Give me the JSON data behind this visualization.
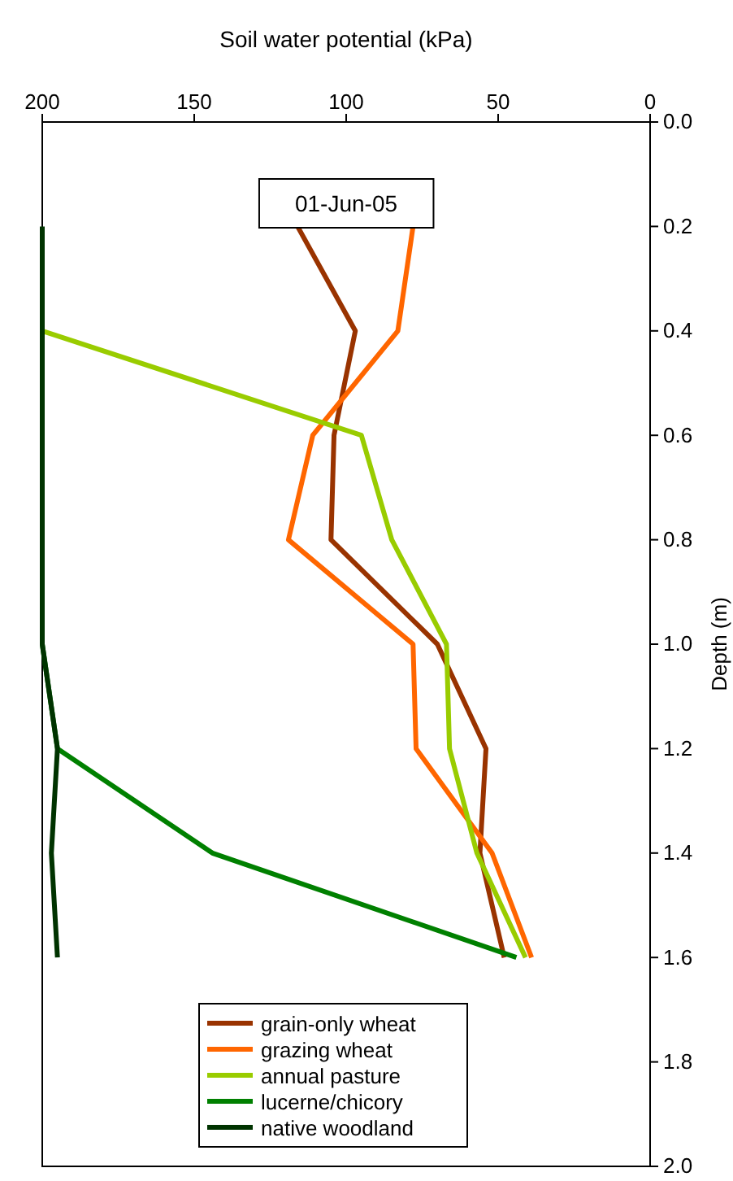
{
  "chart_data": {
    "type": "line",
    "xlabel": "Soil water potential (kPa)",
    "ylabel": "Depth (m)",
    "annotations": [
      "01-Jun-05"
    ],
    "xlim": [
      200,
      0
    ],
    "xticks": [
      200,
      150,
      100,
      50,
      0
    ],
    "ylim": [
      2.0,
      0.0
    ],
    "yticks": [
      {
        "value": 0,
        "label": "0.0"
      },
      {
        "value": 0.2,
        "label": "0.2"
      },
      {
        "value": 0.4,
        "label": "0.4"
      },
      {
        "value": 0.6,
        "label": "0.6"
      },
      {
        "value": 0.8,
        "label": "0.8"
      },
      {
        "value": 1.0,
        "label": "1.0"
      },
      {
        "value": 1.2,
        "label": "1.2"
      },
      {
        "value": 1.4,
        "label": "1.4"
      },
      {
        "value": 1.6,
        "label": "1.6"
      },
      {
        "value": 1.8,
        "label": "1.8"
      },
      {
        "value": 2.0,
        "label": "2.0"
      }
    ],
    "legend": "bottom",
    "grid": false,
    "marker": "none",
    "line_style": "solid",
    "series": [
      {
        "name": "grain-only wheat",
        "color": "#993300",
        "x": [
          116,
          97,
          104,
          105,
          70,
          54,
          56,
          48
        ],
        "values": [
          0.2,
          0.4,
          0.6,
          0.8,
          1.0,
          1.2,
          1.4,
          1.6
        ]
      },
      {
        "name": "grazing wheat",
        "color": "#ff6600",
        "x": [
          78,
          83,
          111,
          119,
          78,
          77,
          52,
          39
        ],
        "values": [
          0.2,
          0.4,
          0.6,
          0.8,
          1.0,
          1.2,
          1.4,
          1.6
        ]
      },
      {
        "name": "annual pasture",
        "color": "#99cc00",
        "x": [
          200,
          95,
          85,
          67,
          66,
          57,
          41
        ],
        "values": [
          0.4,
          0.6,
          0.8,
          1.0,
          1.2,
          1.4,
          1.6
        ]
      },
      {
        "name": "lucerne/chicory",
        "color": "#008000",
        "x": [
          200,
          195,
          144,
          44
        ],
        "values": [
          1.0,
          1.2,
          1.4,
          1.6
        ]
      },
      {
        "name": "native woodland",
        "color": "#003300",
        "x": [
          200,
          200,
          200,
          200,
          200,
          195,
          197,
          195
        ],
        "values": [
          0.2,
          0.4,
          0.6,
          0.8,
          1.0,
          1.2,
          1.4,
          1.6
        ]
      }
    ]
  }
}
